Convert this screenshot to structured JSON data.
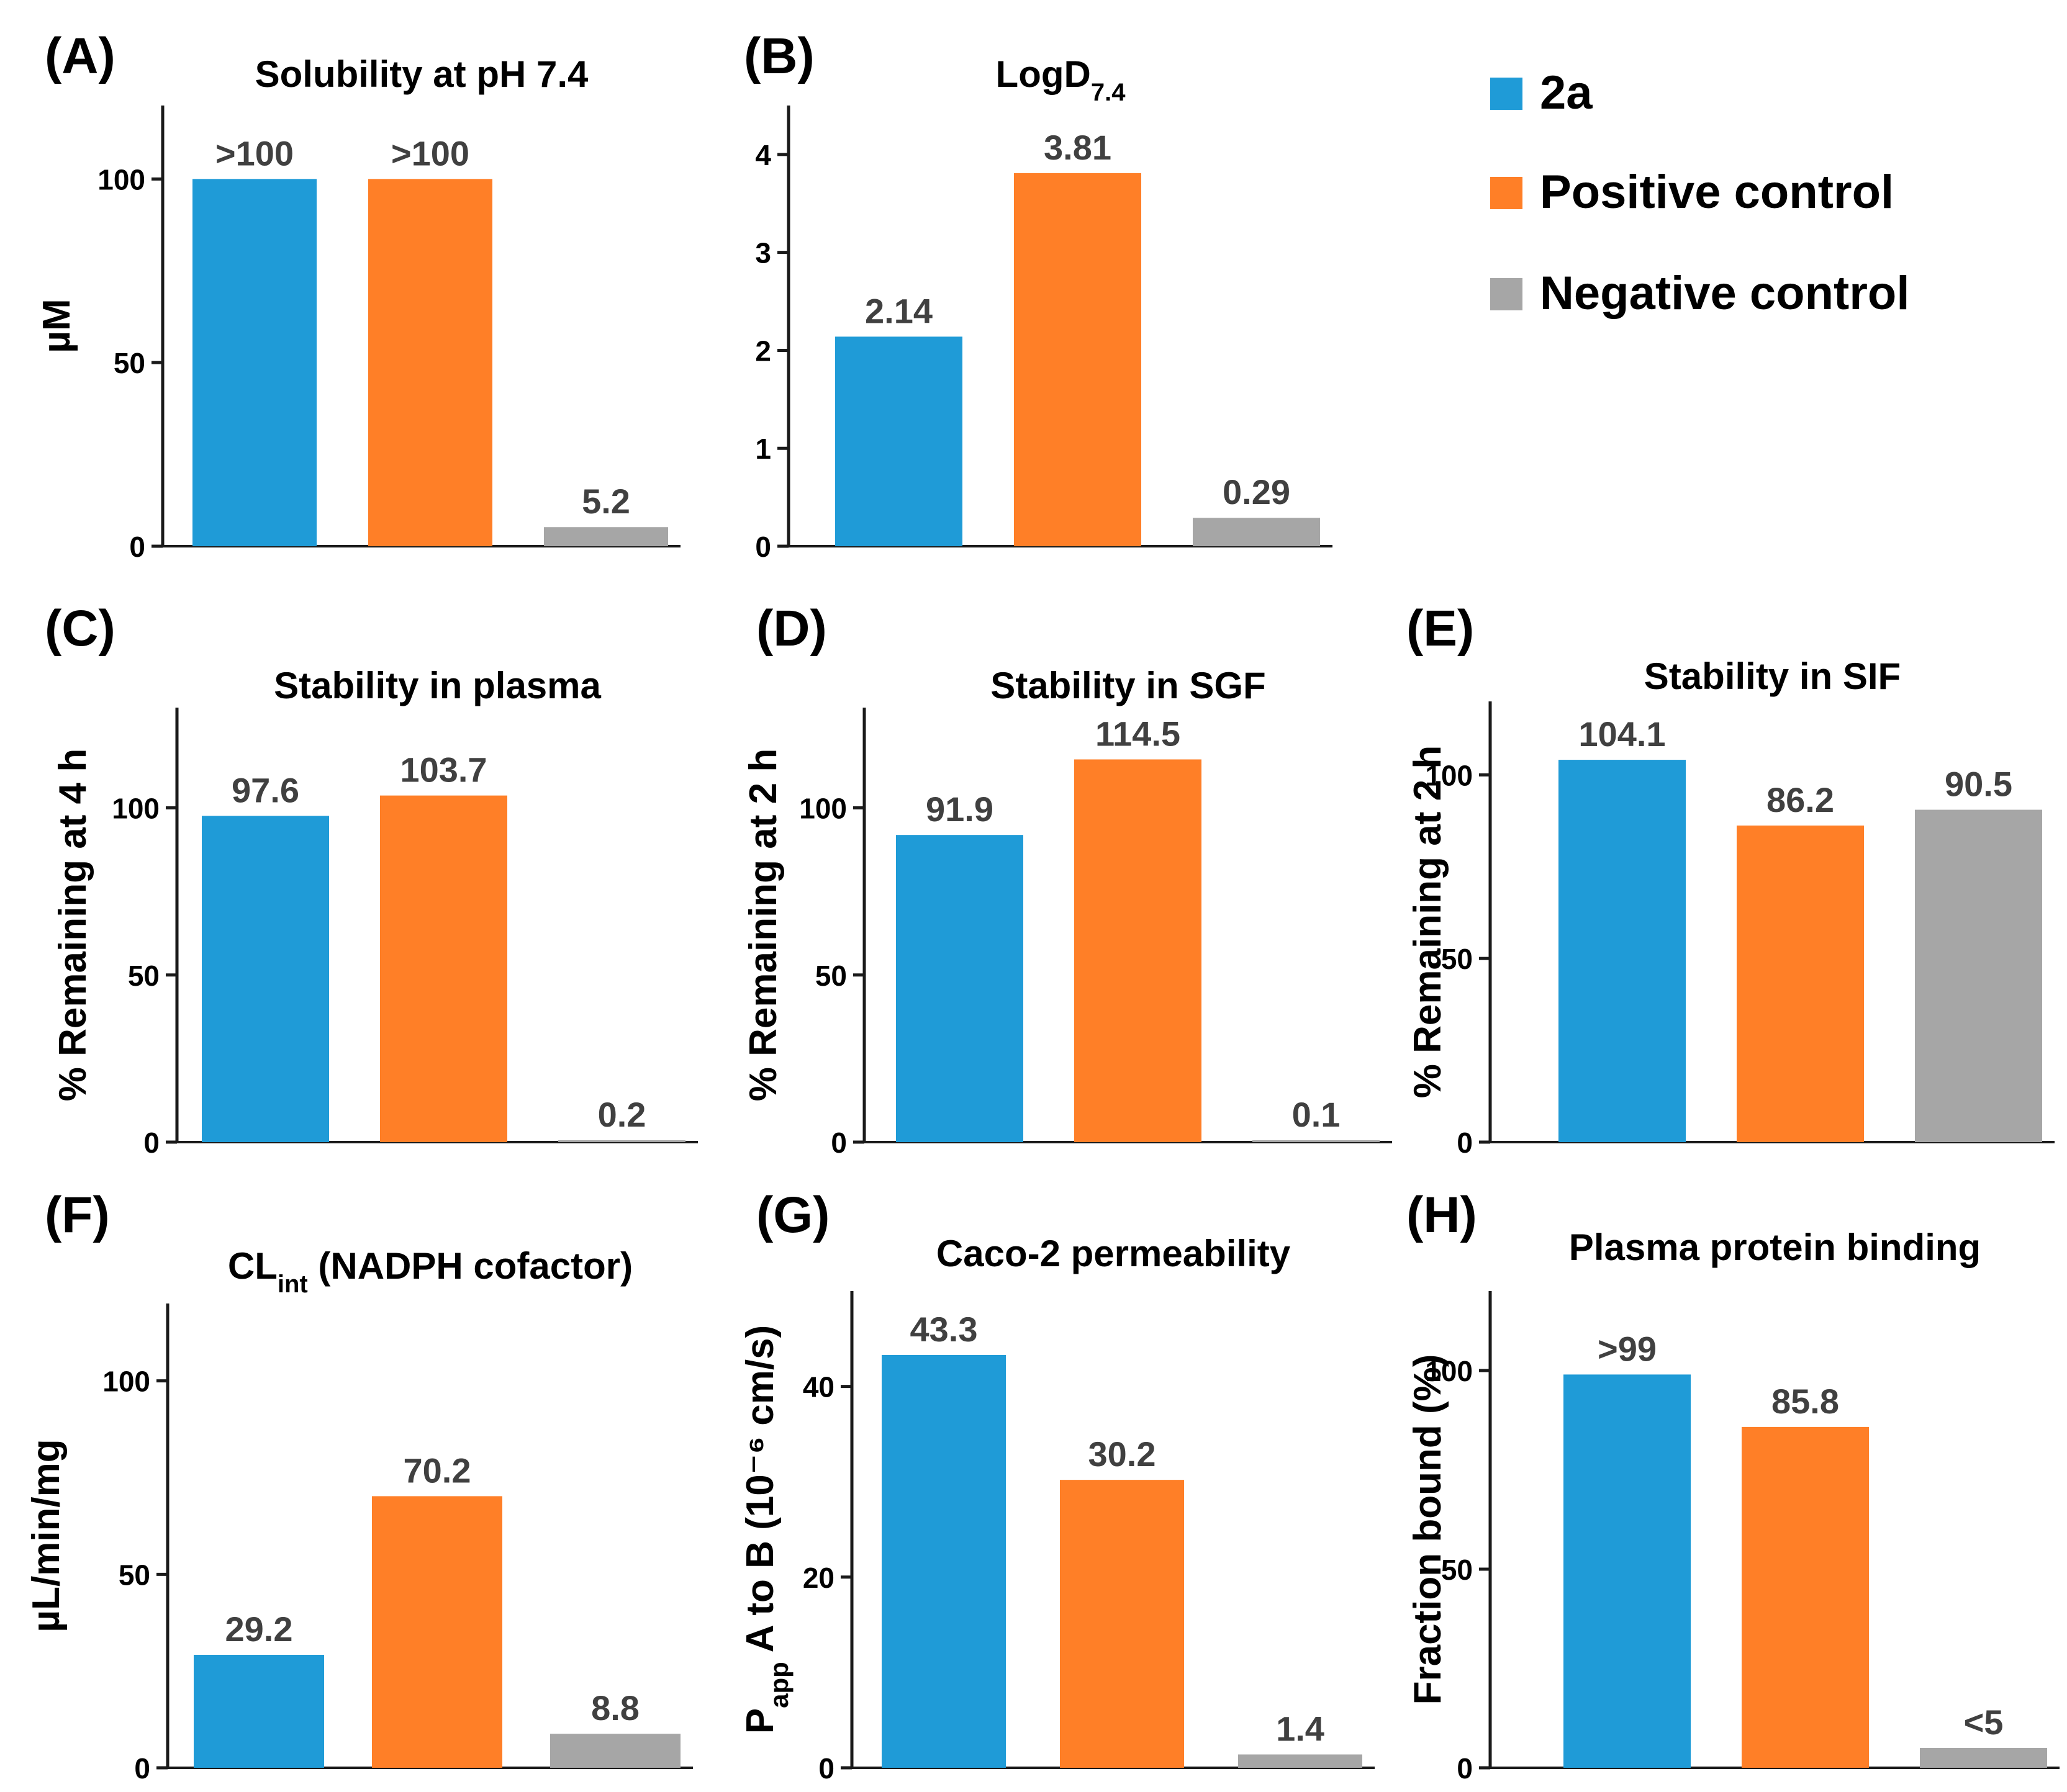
{
  "colors": {
    "series": [
      "#1F9BD7",
      "#FF7F27",
      "#A6A6A6"
    ],
    "axis": "#1a1a1a",
    "text": "#000000",
    "value_label": "#404040"
  },
  "legend": {
    "position": "top-right",
    "items": [
      {
        "label": "2a",
        "color": "#1F9BD7"
      },
      {
        "label": "Positive control",
        "color": "#FF7F27"
      },
      {
        "label": "Negative control",
        "color": "#A6A6A6"
      }
    ]
  },
  "chart_data": [
    {
      "type": "bar",
      "panel": "(A)",
      "title": "Solubility at pH 7.4",
      "title_sub": "",
      "ylabel": "µM",
      "ylabel_sub": "",
      "ylabel_tail": "",
      "ylim": [
        0,
        120
      ],
      "yticks": [
        0,
        50,
        100
      ],
      "categories": [
        "2a",
        "Positive control",
        "Negative control"
      ],
      "values": [
        100,
        100,
        5.2
      ],
      "value_labels": [
        ">100",
        ">100",
        "5.2"
      ]
    },
    {
      "type": "bar",
      "panel": "(B)",
      "title": "LogD",
      "title_sub": "7.4",
      "ylabel": "",
      "ylabel_sub": "",
      "ylabel_tail": "",
      "ylim": [
        0,
        4.5
      ],
      "yticks": [
        0,
        1,
        2,
        3,
        4
      ],
      "categories": [
        "2a",
        "Positive control",
        "Negative control"
      ],
      "values": [
        2.14,
        3.81,
        0.29
      ],
      "value_labels": [
        "2.14",
        "3.81",
        "0.29"
      ]
    },
    {
      "type": "bar",
      "panel": "(C)",
      "title": "Stability in plasma",
      "title_sub": "",
      "ylabel": "% Remaining at 4 h",
      "ylabel_sub": "",
      "ylabel_tail": "",
      "ylim": [
        0,
        130
      ],
      "yticks": [
        0,
        50,
        100
      ],
      "categories": [
        "2a",
        "Positive control",
        "Negative control"
      ],
      "values": [
        97.6,
        103.7,
        0.2
      ],
      "value_labels": [
        "97.6",
        "103.7",
        "0.2"
      ]
    },
    {
      "type": "bar",
      "panel": "(D)",
      "title": "Stability in SGF",
      "title_sub": "",
      "ylabel": "% Remaining at 2 h",
      "ylabel_sub": "",
      "ylabel_tail": "",
      "ylim": [
        0,
        130
      ],
      "yticks": [
        0,
        50,
        100
      ],
      "categories": [
        "2a",
        "Positive control",
        "Negative control"
      ],
      "values": [
        91.9,
        114.5,
        0.1
      ],
      "value_labels": [
        "91.9",
        "114.5",
        "0.1"
      ]
    },
    {
      "type": "bar",
      "panel": "(E)",
      "title": "Stability in SIF",
      "title_sub": "",
      "ylabel": "% Remaining at 2 h",
      "ylabel_sub": "",
      "ylabel_tail": "",
      "ylim": [
        0,
        120
      ],
      "yticks": [
        0,
        50,
        100
      ],
      "categories": [
        "2a",
        "Positive control",
        "Negative control"
      ],
      "values": [
        104.1,
        86.2,
        90.5
      ],
      "value_labels": [
        "104.1",
        "86.2",
        "90.5"
      ]
    },
    {
      "type": "bar",
      "panel": "(F)",
      "title": "CL",
      "title_sub": "int",
      "title_tail": " (NADPH cofactor)",
      "ylabel": "µL/min/mg",
      "ylabel_sub": "",
      "ylabel_tail": "",
      "ylim": [
        0,
        120
      ],
      "yticks": [
        0,
        50,
        100
      ],
      "categories": [
        "2a",
        "Positive control",
        "Negative control"
      ],
      "values": [
        29.2,
        70.2,
        8.8
      ],
      "value_labels": [
        "29.2",
        "70.2",
        "8.8"
      ]
    },
    {
      "type": "bar",
      "panel": "(G)",
      "title": "Caco-2 permeability",
      "title_sub": "",
      "ylabel": "P",
      "ylabel_sub": "app",
      "ylabel_tail": " A to B (10⁻⁶ cm/s)",
      "ylim": [
        0,
        50
      ],
      "yticks": [
        0,
        20,
        40
      ],
      "categories": [
        "2a",
        "Positive control",
        "Negative control"
      ],
      "values": [
        43.3,
        30.2,
        1.4
      ],
      "value_labels": [
        "43.3",
        "30.2",
        "1.4"
      ]
    },
    {
      "type": "bar",
      "panel": "(H)",
      "title": "Plasma protein binding",
      "title_sub": "",
      "ylabel": "Fraction bound (%)",
      "ylabel_sub": "",
      "ylabel_tail": "",
      "ylim": [
        0,
        120
      ],
      "yticks": [
        0,
        50,
        100
      ],
      "categories": [
        "2a",
        "Positive control",
        "Negative control"
      ],
      "values": [
        99,
        85.8,
        5
      ],
      "value_labels": [
        ">99",
        "85.8",
        "<5"
      ]
    }
  ]
}
